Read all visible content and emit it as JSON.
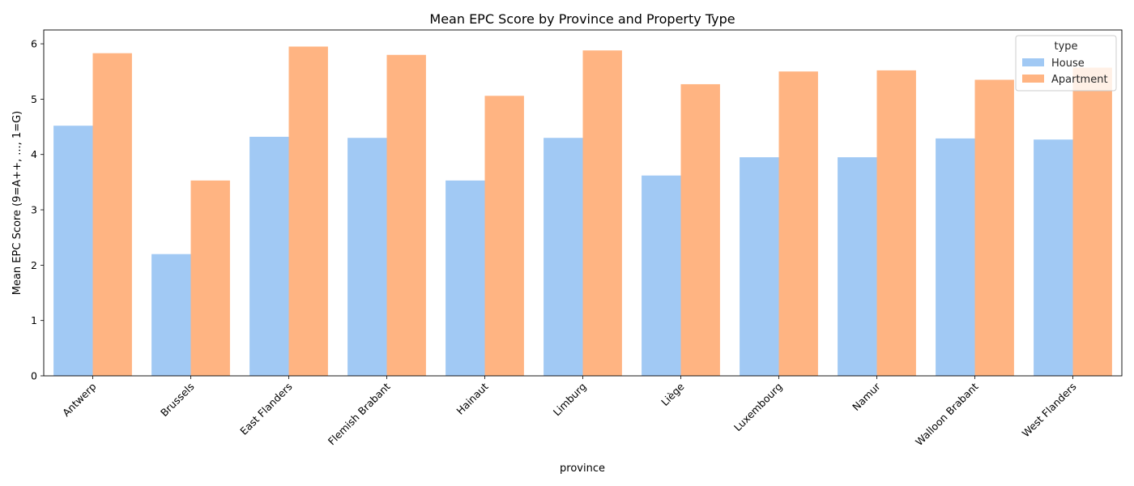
{
  "chart_data": {
    "type": "bar",
    "title": "Mean EPC Score by Province and Property Type",
    "xlabel": "province",
    "ylabel": "Mean EPC Score (9=A++, ..., 1=G)",
    "ylim": [
      0,
      6.25
    ],
    "yticks": [
      "0",
      "1",
      "2",
      "3",
      "4",
      "5",
      "6"
    ],
    "grid": false,
    "legend": {
      "title": "type",
      "placement": "top-right"
    },
    "categories": [
      "Antwerp",
      "Brussels",
      "East Flanders",
      "Flemish Brabant",
      "Hainaut",
      "Limburg",
      "Liège",
      "Luxembourg",
      "Namur",
      "Walloon Brabant",
      "West Flanders"
    ],
    "series": [
      {
        "name": "House",
        "color": "#a1c9f4",
        "values": [
          4.52,
          2.2,
          4.32,
          4.3,
          3.53,
          4.3,
          3.62,
          3.95,
          3.95,
          4.29,
          4.27
        ]
      },
      {
        "name": "Apartment",
        "color": "#ffb482",
        "values": [
          5.83,
          3.53,
          5.95,
          5.8,
          5.06,
          5.88,
          5.27,
          5.5,
          5.52,
          5.35,
          5.57
        ]
      }
    ]
  }
}
